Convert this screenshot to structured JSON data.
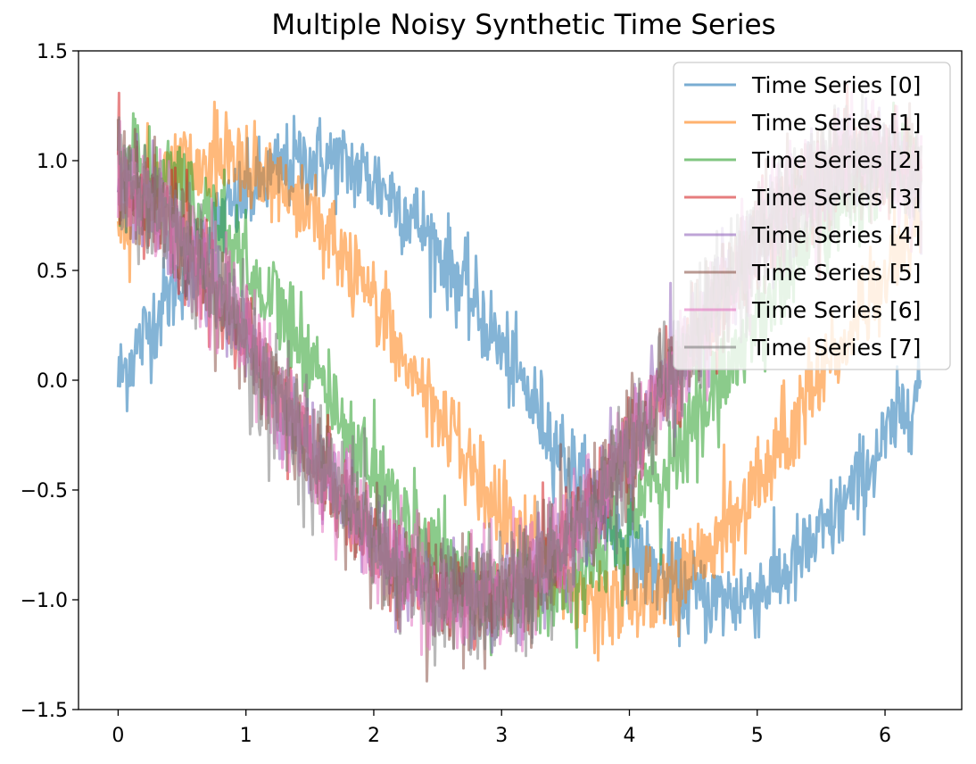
{
  "chart_data": {
    "type": "line",
    "title": "Multiple Noisy Synthetic Time Series",
    "xlabel": "",
    "ylabel": "",
    "xlim": [
      -0.31,
      6.6
    ],
    "ylim": [
      -1.5,
      1.5
    ],
    "x_ticks": [
      0,
      1,
      2,
      3,
      4,
      5,
      6
    ],
    "x_tick_labels": [
      "0",
      "1",
      "2",
      "3",
      "4",
      "5",
      "6"
    ],
    "y_ticks": [
      1.5,
      1.0,
      0.5,
      0.0,
      -0.5,
      -1.0,
      -1.5
    ],
    "y_tick_labels": [
      "1.5",
      "1.0",
      "0.5",
      "0.0",
      "−0.5",
      "−1.0",
      "−1.5"
    ],
    "x_range": [
      0,
      6.2832
    ],
    "grid": false,
    "legend_position": "top-right",
    "series": [
      {
        "name": "Time Series [0]",
        "color": "#1f77b4",
        "phase": 0.0,
        "noise": 0.17
      },
      {
        "name": "Time Series [1]",
        "color": "#ff7f0e",
        "phase": 0.785,
        "noise": 0.17
      },
      {
        "name": "Time Series [2]",
        "color": "#2ca02c",
        "phase": 1.571,
        "noise": 0.2
      },
      {
        "name": "Time Series [3]",
        "color": "#d62728",
        "phase": 1.963,
        "noise": 0.19
      },
      {
        "name": "Time Series [4]",
        "color": "#9467bd",
        "phase": 1.963,
        "noise": 0.2
      },
      {
        "name": "Time Series [5]",
        "color": "#8c564b",
        "phase": 1.963,
        "noise": 0.22
      },
      {
        "name": "Time Series [6]",
        "color": "#e377c2",
        "phase": 1.963,
        "noise": 0.23
      },
      {
        "name": "Time Series [7]",
        "color": "#7f7f7f",
        "phase": 1.963,
        "noise": 0.24
      }
    ]
  }
}
